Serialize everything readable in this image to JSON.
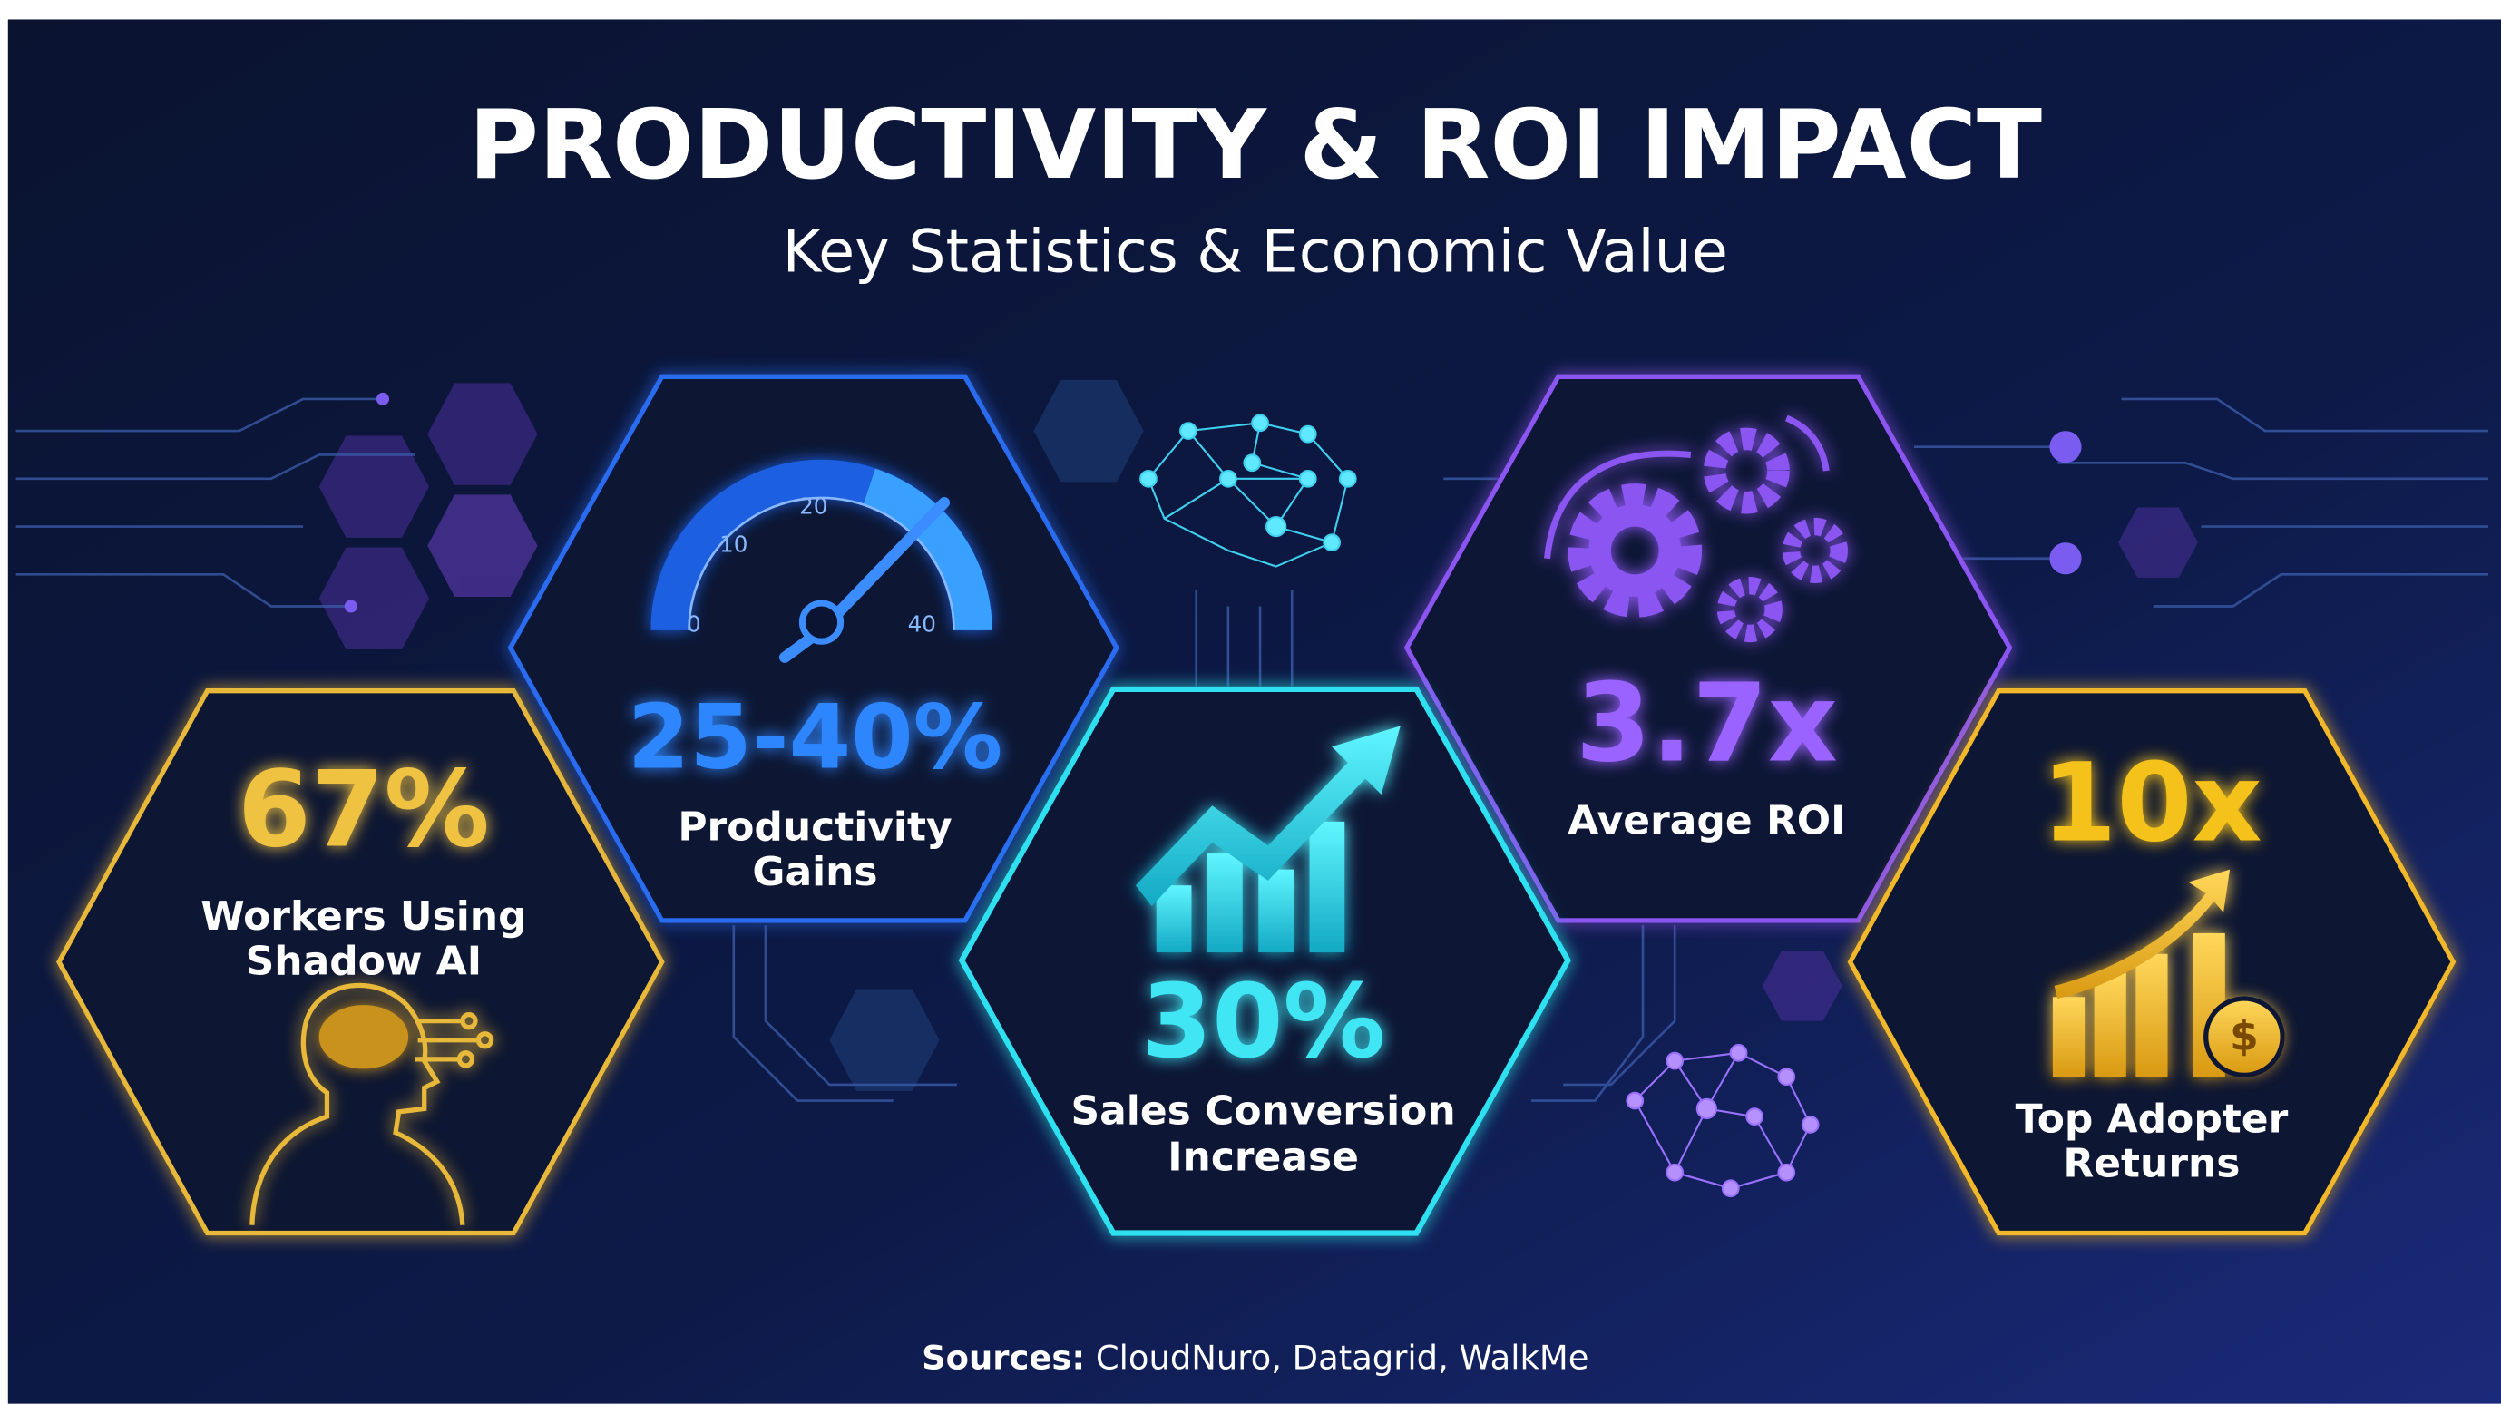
{
  "header": {
    "title": "PRODUCTIVITY & ROI IMPACT",
    "subtitle": "Key Statistics & Economic Value"
  },
  "stats": [
    {
      "value": "67%",
      "label": [
        "Workers Using",
        "Shadow AI"
      ]
    },
    {
      "value": "25-40%",
      "label": [
        "Productivity",
        "Gains"
      ],
      "gauge_labels": [
        "0",
        "10",
        "20",
        "40"
      ]
    },
    {
      "value": "30%",
      "label": [
        "Sales Conversion",
        "Increase"
      ]
    },
    {
      "value": "3.7x",
      "label": [
        "Average ROI"
      ]
    },
    {
      "value": "10x",
      "label": [
        "Top Adopter",
        "Returns"
      ]
    }
  ],
  "footer": {
    "sources_label": "Sources:",
    "sources": "CloudNuro, Datagrid, WalkMe"
  }
}
